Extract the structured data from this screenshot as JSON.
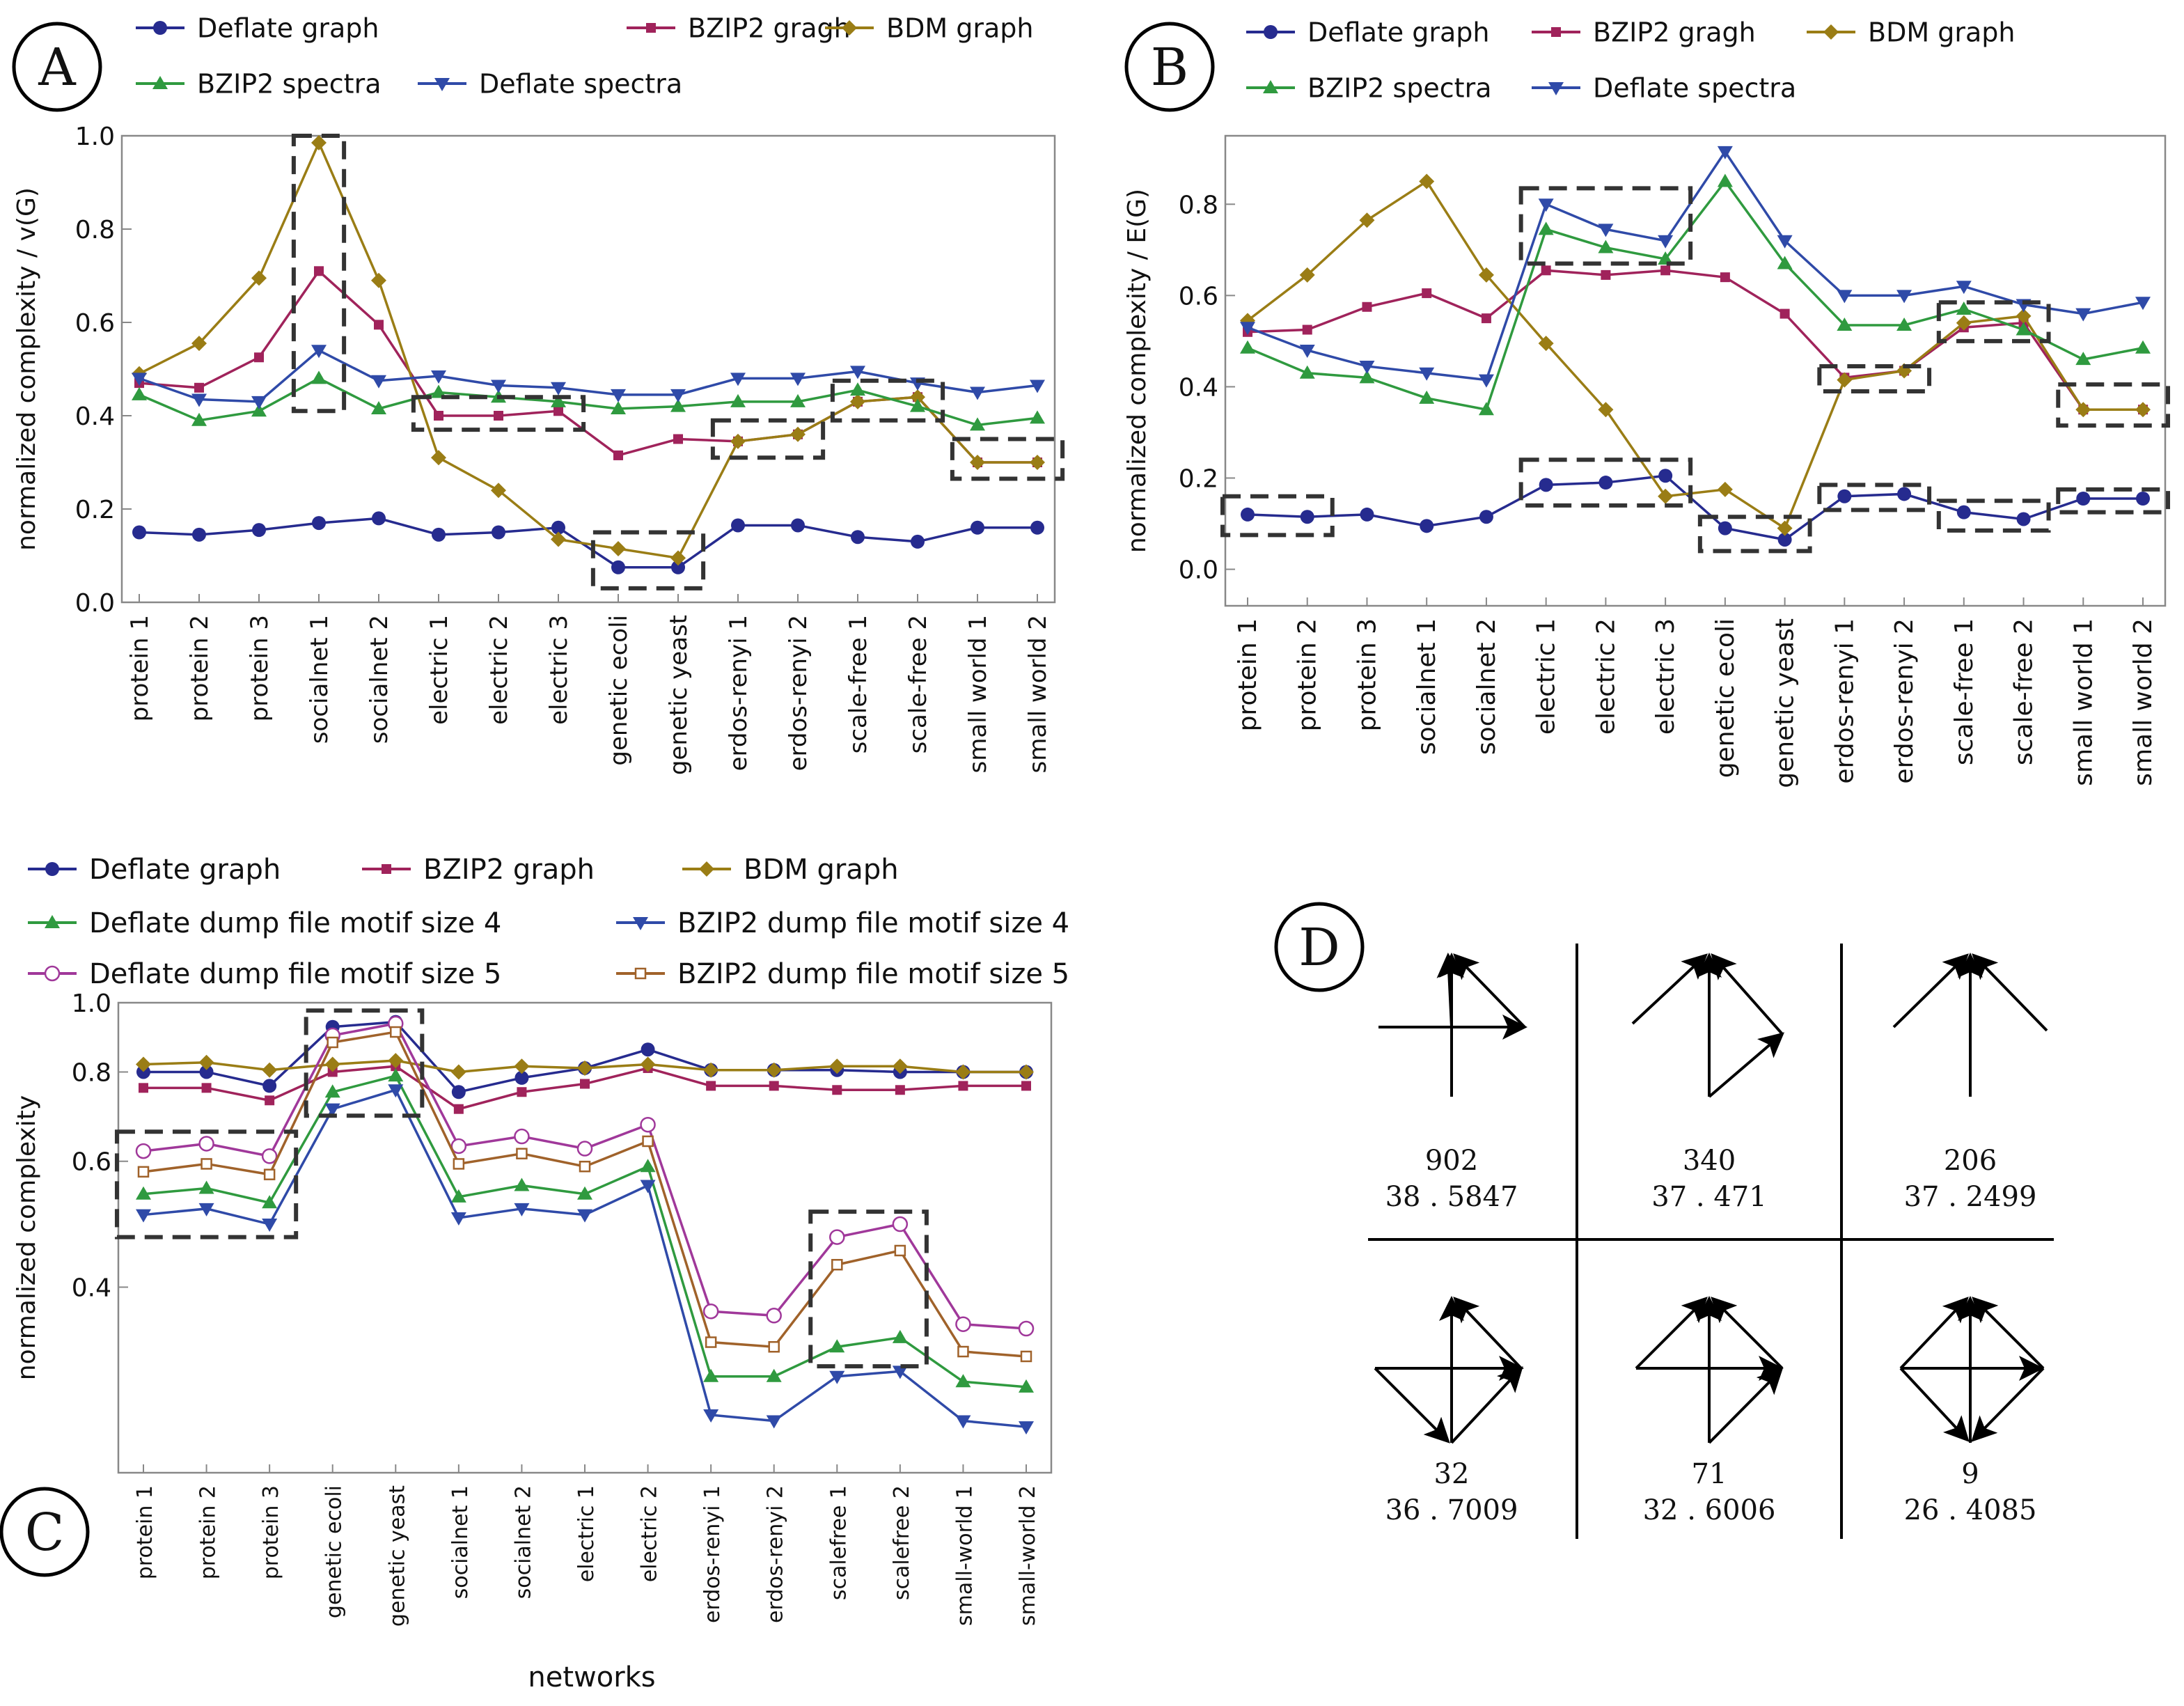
{
  "colors": {
    "deflate_graph": "#262b8f",
    "bzip2_graph": "#a0235b",
    "bdm_graph": "#9a7d15",
    "bzip2_spectra": "#2f9a3f",
    "deflate_spectra": "#2f4aa8",
    "deflate_motif5": "#a0389a",
    "bzip2_motif5": "#a0622a",
    "highlight_box": "#333333"
  },
  "chart_data": [
    {
      "panel": "A",
      "type": "line",
      "ylabel": "normalized complexity / v(G)",
      "xlabel": "",
      "ylim": [
        0,
        1.0
      ],
      "yticks": [
        "0.0",
        "0.2",
        "0.4",
        "0.6",
        "0.8",
        "1.0"
      ],
      "categories": [
        "protein 1",
        "protein 2",
        "protein 3",
        "socialnet 1",
        "socialnet 2",
        "electric 1",
        "electric 2",
        "electric 3",
        "genetic ecoli",
        "genetic yeast",
        "erdos-renyi 1",
        "erdos-renyi 2",
        "scale-free 1",
        "scale-free 2",
        "small world 1",
        "small world 2"
      ],
      "legend": [
        "Deflate graph",
        "BZIP2 gragh",
        "BDM graph",
        "BZIP2 spectra",
        "Deflate spectra"
      ],
      "series": [
        {
          "name": "Deflate graph",
          "color_key": "deflate_graph",
          "marker": "circle",
          "values": [
            0.15,
            0.145,
            0.155,
            0.17,
            0.18,
            0.145,
            0.15,
            0.16,
            0.075,
            0.075,
            0.165,
            0.165,
            0.14,
            0.13,
            0.16,
            0.16
          ]
        },
        {
          "name": "BZIP2 gragh",
          "color_key": "bzip2_graph",
          "marker": "square",
          "values": [
            0.47,
            0.46,
            0.525,
            0.71,
            0.595,
            0.4,
            0.4,
            0.41,
            0.315,
            0.35,
            0.345,
            0.36,
            0.43,
            0.44,
            0.3,
            0.3
          ]
        },
        {
          "name": "BDM graph",
          "color_key": "bdm_graph",
          "marker": "diamond",
          "values": [
            0.49,
            0.555,
            0.695,
            0.985,
            0.69,
            0.31,
            0.24,
            0.135,
            0.115,
            0.095,
            0.345,
            0.36,
            0.43,
            0.44,
            0.3,
            0.3
          ]
        },
        {
          "name": "BZIP2 spectra",
          "color_key": "bzip2_spectra",
          "marker": "triangle-up",
          "values": [
            0.445,
            0.39,
            0.41,
            0.48,
            0.415,
            0.45,
            0.44,
            0.43,
            0.415,
            0.42,
            0.43,
            0.43,
            0.455,
            0.42,
            0.38,
            0.395
          ]
        },
        {
          "name": "Deflate spectra",
          "color_key": "deflate_spectra",
          "marker": "triangle-down",
          "values": [
            0.48,
            0.435,
            0.43,
            0.54,
            0.475,
            0.485,
            0.465,
            0.46,
            0.445,
            0.445,
            0.48,
            0.48,
            0.495,
            0.47,
            0.45,
            0.465
          ]
        }
      ],
      "highlights": [
        {
          "from": 3,
          "to": 3,
          "ymin": 0.41,
          "ymax": 1.0
        },
        {
          "from": 5,
          "to": 7,
          "ymin": 0.37,
          "ymax": 0.44
        },
        {
          "from": 8,
          "to": 9,
          "ymin": 0.03,
          "ymax": 0.15
        },
        {
          "from": 10,
          "to": 11,
          "ymin": 0.31,
          "ymax": 0.39
        },
        {
          "from": 12,
          "to": 13,
          "ymin": 0.39,
          "ymax": 0.475
        },
        {
          "from": 14,
          "to": 15,
          "ymin": 0.265,
          "ymax": 0.35
        }
      ]
    },
    {
      "panel": "B",
      "type": "line",
      "ylabel": "normalized complexity / E(G)",
      "xlabel": "",
      "ylim": [
        -0.08,
        0.95
      ],
      "yticks": [
        "0.0",
        "0.2",
        "0.4",
        "0.6",
        "0.8"
      ],
      "categories": [
        "protein 1",
        "protein 2",
        "protein 3",
        "socialnet 1",
        "socialnet 2",
        "electric 1",
        "electric 2",
        "electric 3",
        "genetic ecoli",
        "genetic yeast",
        "erdos-renyi 1",
        "erdos-renyi 2",
        "scale-free 1",
        "scale-free 2",
        "small world 1",
        "small world 2"
      ],
      "legend": [
        "Deflate graph",
        "BZIP2 gragh",
        "BDM graph",
        "BZIP2 spectra",
        "Deflate spectra"
      ],
      "series": [
        {
          "name": "Deflate graph",
          "color_key": "deflate_graph",
          "marker": "circle",
          "values": [
            0.12,
            0.115,
            0.12,
            0.095,
            0.115,
            0.185,
            0.19,
            0.205,
            0.09,
            0.065,
            0.16,
            0.165,
            0.125,
            0.11,
            0.155,
            0.155
          ]
        },
        {
          "name": "BZIP2 gragh",
          "color_key": "bzip2_graph",
          "marker": "square",
          "values": [
            0.52,
            0.525,
            0.575,
            0.605,
            0.55,
            0.655,
            0.645,
            0.655,
            0.64,
            0.56,
            0.42,
            0.435,
            0.53,
            0.54,
            0.35,
            0.35
          ]
        },
        {
          "name": "BDM graph",
          "color_key": "bdm_graph",
          "marker": "diamond",
          "values": [
            0.545,
            0.645,
            0.765,
            0.85,
            0.645,
            0.495,
            0.35,
            0.16,
            0.175,
            0.09,
            0.415,
            0.435,
            0.54,
            0.555,
            0.35,
            0.35
          ]
        },
        {
          "name": "BZIP2 spectra",
          "color_key": "bzip2_spectra",
          "marker": "triangle-up",
          "values": [
            0.485,
            0.43,
            0.42,
            0.375,
            0.35,
            0.745,
            0.705,
            0.68,
            0.85,
            0.67,
            0.535,
            0.535,
            0.57,
            0.525,
            0.46,
            0.485
          ]
        },
        {
          "name": "Deflate spectra",
          "color_key": "deflate_spectra",
          "marker": "triangle-down",
          "values": [
            0.53,
            0.48,
            0.445,
            0.43,
            0.415,
            0.8,
            0.745,
            0.72,
            0.915,
            0.72,
            0.6,
            0.6,
            0.62,
            0.58,
            0.56,
            0.585
          ]
        }
      ],
      "highlights": [
        {
          "from": 0,
          "to": 1,
          "ymin": 0.075,
          "ymax": 0.16
        },
        {
          "from": 5,
          "to": 7,
          "ymin": 0.67,
          "ymax": 0.835
        },
        {
          "from": 5,
          "to": 7,
          "ymin": 0.14,
          "ymax": 0.24
        },
        {
          "from": 8,
          "to": 9,
          "ymin": 0.04,
          "ymax": 0.115
        },
        {
          "from": 10,
          "to": 11,
          "ymin": 0.39,
          "ymax": 0.445
        },
        {
          "from": 10,
          "to": 11,
          "ymin": 0.13,
          "ymax": 0.185
        },
        {
          "from": 12,
          "to": 13,
          "ymin": 0.5,
          "ymax": 0.585
        },
        {
          "from": 12,
          "to": 13,
          "ymin": 0.085,
          "ymax": 0.15
        },
        {
          "from": 14,
          "to": 15,
          "ymin": 0.315,
          "ymax": 0.405
        },
        {
          "from": 14,
          "to": 15,
          "ymin": 0.125,
          "ymax": 0.175
        }
      ]
    },
    {
      "panel": "C",
      "type": "line",
      "ylabel": "normalized complexity",
      "xlabel": "networks",
      "ylim": [
        0.22,
        1.0
      ],
      "y_scale": "log",
      "yticks": [
        "1.0",
        "0.8",
        "0.6",
        "0.4"
      ],
      "categories": [
        "protein 1",
        "protein 2",
        "protein 3",
        "genetic ecoli",
        "genetic yeast",
        "socialnet 1",
        "socialnet 2",
        "electric 1",
        "electric 2",
        "erdos-renyi 1",
        "erdos-renyi 2",
        "scalefree 1",
        "scalefree 2",
        "small-world 1",
        "small-world 2"
      ],
      "legend": [
        "Deflate graph",
        "BZIP2 graph",
        "BDM graph",
        "Deflate dump file motif size 4",
        "BZIP2 dump file motif size 4",
        "Deflate dump file motif size 5",
        "BZIP2 dump file motif size 5"
      ],
      "series": [
        {
          "name": "Deflate graph",
          "color_key": "deflate_graph",
          "marker": "circle",
          "values": [
            0.8,
            0.8,
            0.765,
            0.925,
            0.94,
            0.75,
            0.785,
            0.81,
            0.86,
            0.805,
            0.805,
            0.805,
            0.8,
            0.8,
            0.8
          ]
        },
        {
          "name": "BZIP2 graph",
          "color_key": "bzip2_graph",
          "marker": "square",
          "values": [
            0.76,
            0.76,
            0.73,
            0.8,
            0.815,
            0.71,
            0.75,
            0.77,
            0.81,
            0.765,
            0.765,
            0.755,
            0.755,
            0.765,
            0.765
          ]
        },
        {
          "name": "BDM graph",
          "color_key": "bdm_graph",
          "marker": "diamond",
          "values": [
            0.82,
            0.825,
            0.805,
            0.82,
            0.83,
            0.8,
            0.815,
            0.81,
            0.82,
            0.805,
            0.805,
            0.815,
            0.815,
            0.8,
            0.8
          ]
        },
        {
          "name": "Deflate dump file motif size 4",
          "color_key": "bzip2_spectra",
          "marker": "triangle-up",
          "values": [
            0.54,
            0.55,
            0.525,
            0.75,
            0.79,
            0.535,
            0.555,
            0.54,
            0.59,
            0.3,
            0.3,
            0.33,
            0.34,
            0.295,
            0.29
          ]
        },
        {
          "name": "BZIP2 dump file motif size 4",
          "color_key": "deflate_spectra",
          "marker": "triangle-down",
          "values": [
            0.505,
            0.515,
            0.49,
            0.71,
            0.755,
            0.5,
            0.515,
            0.505,
            0.555,
            0.265,
            0.26,
            0.3,
            0.305,
            0.26,
            0.255
          ]
        },
        {
          "name": "Deflate dump file motif size 5",
          "color_key": "deflate_motif5",
          "marker": "circle-open",
          "values": [
            0.62,
            0.635,
            0.61,
            0.9,
            0.935,
            0.63,
            0.65,
            0.625,
            0.675,
            0.37,
            0.365,
            0.47,
            0.49,
            0.355,
            0.35
          ]
        },
        {
          "name": "BZIP2 dump file motif size 5",
          "color_key": "bzip2_motif5",
          "marker": "square-open",
          "values": [
            0.58,
            0.595,
            0.575,
            0.88,
            0.91,
            0.595,
            0.615,
            0.59,
            0.64,
            0.335,
            0.33,
            0.43,
            0.45,
            0.325,
            0.32
          ]
        }
      ],
      "highlights": [
        {
          "from": 0,
          "to": 2,
          "ymin": 0.47,
          "ymax": 0.66
        },
        {
          "from": 3,
          "to": 4,
          "ymin": 0.695,
          "ymax": 0.975
        },
        {
          "from": 11,
          "to": 12,
          "ymin": 0.31,
          "ymax": 0.51
        }
      ]
    }
  ],
  "panels": {
    "A": {
      "label": "A"
    },
    "B": {
      "label": "B"
    },
    "C": {
      "label": "C"
    },
    "D": {
      "label": "D",
      "motifs": [
        {
          "count": "902",
          "score": "38 . 5847"
        },
        {
          "count": "340",
          "score": "37 . 471"
        },
        {
          "count": "206",
          "score": "37 . 2499"
        },
        {
          "count": "32",
          "score": "36 . 7009"
        },
        {
          "count": "71",
          "score": "32 . 6006"
        },
        {
          "count": "9",
          "score": "26 . 4085"
        }
      ]
    }
  }
}
